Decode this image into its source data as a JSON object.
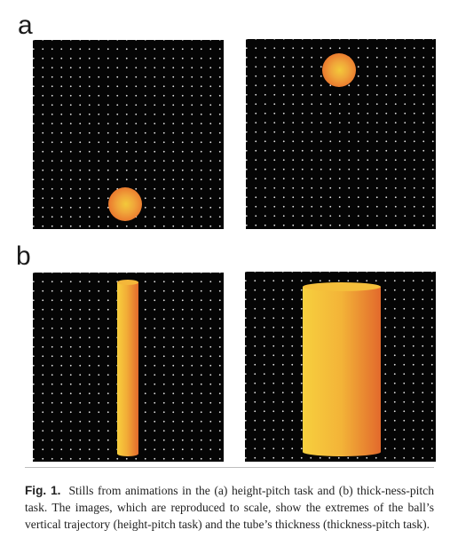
{
  "panels": {
    "a": {
      "letter": "a"
    },
    "b": {
      "letter": "b"
    }
  },
  "caption": {
    "lead": "Fig. 1.",
    "body": "Stills from animations in the (a) height-pitch task and (b) thick-ness-pitch task. The images, which are reproduced to scale, show the extremes of the ball’s vertical trajectory (height-pitch task) and the tube’s thickness (thickness-pitch task)."
  },
  "colors": {
    "background": "#050505",
    "dots": "#d9d9d9",
    "ball_center": "#f3c93a",
    "ball_edge": "#e2672a",
    "tube_light": "#f6c93c",
    "tube_dark": "#e26a2c"
  }
}
